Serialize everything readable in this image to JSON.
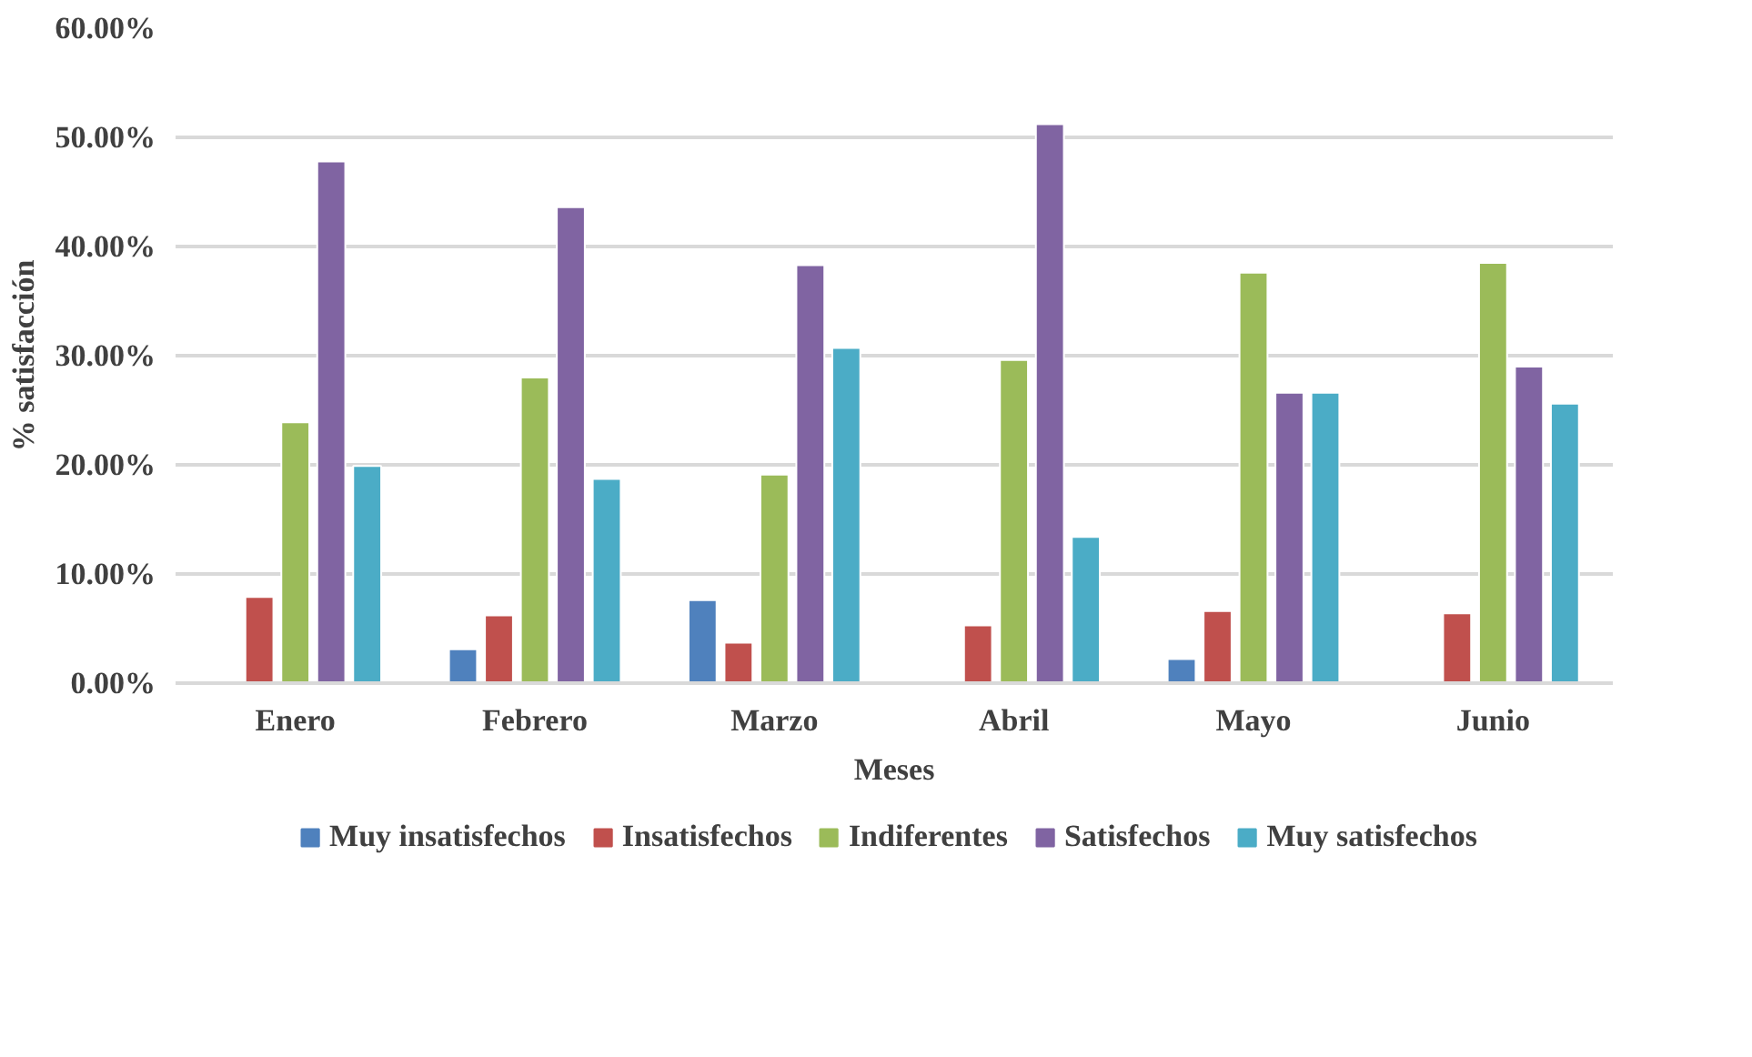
{
  "chart_data": {
    "type": "bar",
    "xlabel": "Meses",
    "ylabel": "% satisfacción",
    "categories": [
      "Enero",
      "Febrero",
      "Marzo",
      "Abril",
      "Mayo",
      "Junio"
    ],
    "series": [
      {
        "name": "Muy insatisfechos",
        "color": "#4f81bd",
        "values": [
          null,
          3.1,
          7.6,
          null,
          2.2,
          null
        ]
      },
      {
        "name": "Insatisfechos",
        "color": "#c0504d",
        "values": [
          7.9,
          6.2,
          3.7,
          5.3,
          6.6,
          6.4
        ]
      },
      {
        "name": "Indiferentes",
        "color": "#9bbb59",
        "values": [
          23.9,
          28.0,
          19.1,
          29.6,
          37.6,
          38.5
        ]
      },
      {
        "name": "Satisfechos",
        "color": "#8064a2",
        "values": [
          47.8,
          43.6,
          38.3,
          51.2,
          26.6,
          29.0
        ]
      },
      {
        "name": "Muy satisfechos",
        "color": "#4bacc6",
        "values": [
          19.9,
          18.7,
          30.7,
          13.4,
          26.6,
          25.6
        ]
      }
    ],
    "ylim": [
      0,
      60
    ],
    "yticks": [
      {
        "value": 0,
        "label": "0.00%"
      },
      {
        "value": 10,
        "label": "10.00%"
      },
      {
        "value": 20,
        "label": "20.00%"
      },
      {
        "value": 30,
        "label": "30.00%"
      },
      {
        "value": 40,
        "label": "40.00%"
      },
      {
        "value": 50,
        "label": "50.00%"
      },
      {
        "value": 60,
        "label": "60.00%"
      }
    ],
    "grid": "y",
    "legend": "bottom"
  }
}
